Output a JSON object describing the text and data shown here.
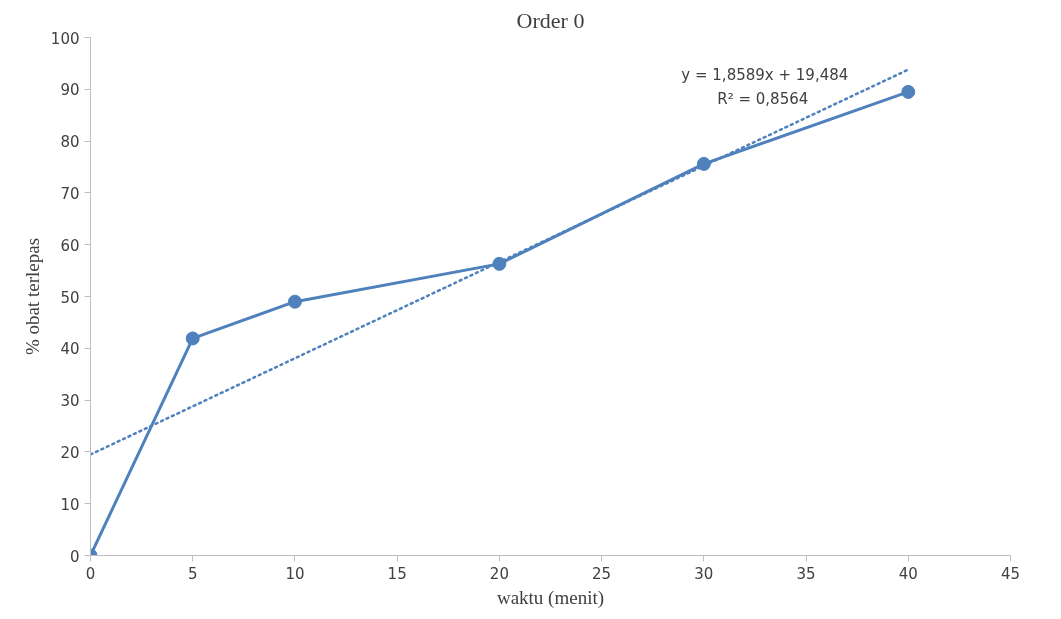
{
  "chart_data": {
    "type": "line",
    "title": "Order 0",
    "xlabel": "waktu (menit)",
    "ylabel": "% obat terlepas",
    "annotations": [
      "y = 1,8589x + 19,484",
      "R² = 0,8564"
    ],
    "series": [
      {
        "color": "#4f81bd",
        "x": [
          0,
          5,
          10,
          20,
          30,
          40
        ],
        "values": [
          0,
          41.9,
          49.0,
          56.3,
          75.6,
          89.5
        ],
        "marker": "circle",
        "line_style": "solid"
      },
      {
        "type": "line",
        "color": "#4f81bd",
        "x": [
          0,
          40
        ],
        "values": [
          19.5,
          93.8
        ],
        "marker": "none",
        "line_style": "dotted"
      }
    ],
    "xlim": [
      0,
      45
    ],
    "xticks": [
      0,
      5,
      10,
      15,
      20,
      25,
      30,
      35,
      40,
      45
    ],
    "ylim": [
      0,
      100
    ],
    "yticks": [
      0,
      10,
      20,
      30,
      40,
      50,
      60,
      70,
      80,
      90,
      100
    ],
    "grid": false
  }
}
